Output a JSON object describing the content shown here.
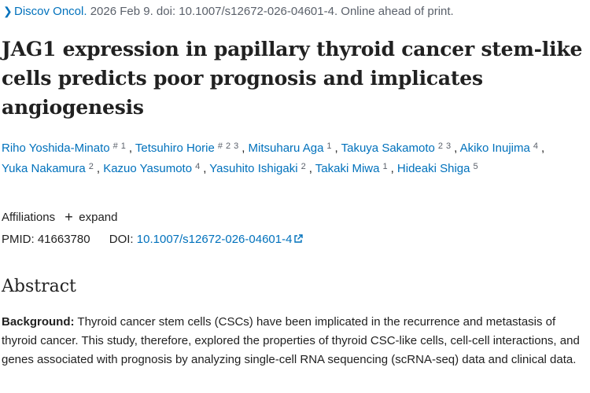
{
  "journal_line": {
    "journal": "Discov Oncol.",
    "citation": " 2026 Feb 9. doi: 10.1007/s12672-026-04601-4. Online ahead of print."
  },
  "article": {
    "title": "JAG1 expression in papillary thyroid cancer stem-like cells predicts poor prognosis and implicates angiogenesis"
  },
  "authors": [
    {
      "name": "Riho Yoshida-Minato",
      "marks": [
        "#",
        "1"
      ],
      "sep": ","
    },
    {
      "name": "Tetsuhiro Horie",
      "marks": [
        "#",
        "2",
        "3"
      ],
      "sep": ","
    },
    {
      "name": "Mitsuharu Aga",
      "marks": [
        "1"
      ],
      "sep": ","
    },
    {
      "name": "Takuya Sakamoto",
      "marks": [
        "2",
        "3"
      ],
      "sep": ","
    },
    {
      "name": "Akiko Inujima",
      "marks": [
        "4"
      ],
      "sep": ","
    },
    {
      "name": "Yuka Nakamura",
      "marks": [
        "2"
      ],
      "sep": ","
    },
    {
      "name": "Kazuo Yasumoto",
      "marks": [
        "4"
      ],
      "sep": ","
    },
    {
      "name": "Yasuhito Ishigaki",
      "marks": [
        "2"
      ],
      "sep": ","
    },
    {
      "name": "Takaki Miwa",
      "marks": [
        "1"
      ],
      "sep": ","
    },
    {
      "name": "Hideaki Shiga",
      "marks": [
        "5"
      ],
      "sep": ""
    }
  ],
  "affiliations": {
    "label": "Affiliations",
    "expand_label": "expand",
    "expand_icon": "+"
  },
  "identifiers": {
    "pmid_label": "PMID:",
    "pmid": "41663780",
    "doi_label": "DOI:",
    "doi": "10.1007/s12672-026-04601-4"
  },
  "abstract": {
    "heading": "Abstract",
    "background_label": "Background:",
    "background_text": " Thyroid cancer stem cells (CSCs) have been implicated in the recurrence and metastasis of thyroid cancer. This study, therefore, explored the properties of thyroid CSC-like cells, cell-cell interactions, and genes associated with prognosis by analyzing single-cell RNA sequencing (scRNA-seq) data and clinical data."
  },
  "icons": {
    "journal_chevron": "chevron-right-icon",
    "expand": "plus-icon",
    "doi_external": "external-link-icon"
  },
  "colors": {
    "link": "#0071bc",
    "text": "#212121",
    "muted": "#5b616b"
  }
}
